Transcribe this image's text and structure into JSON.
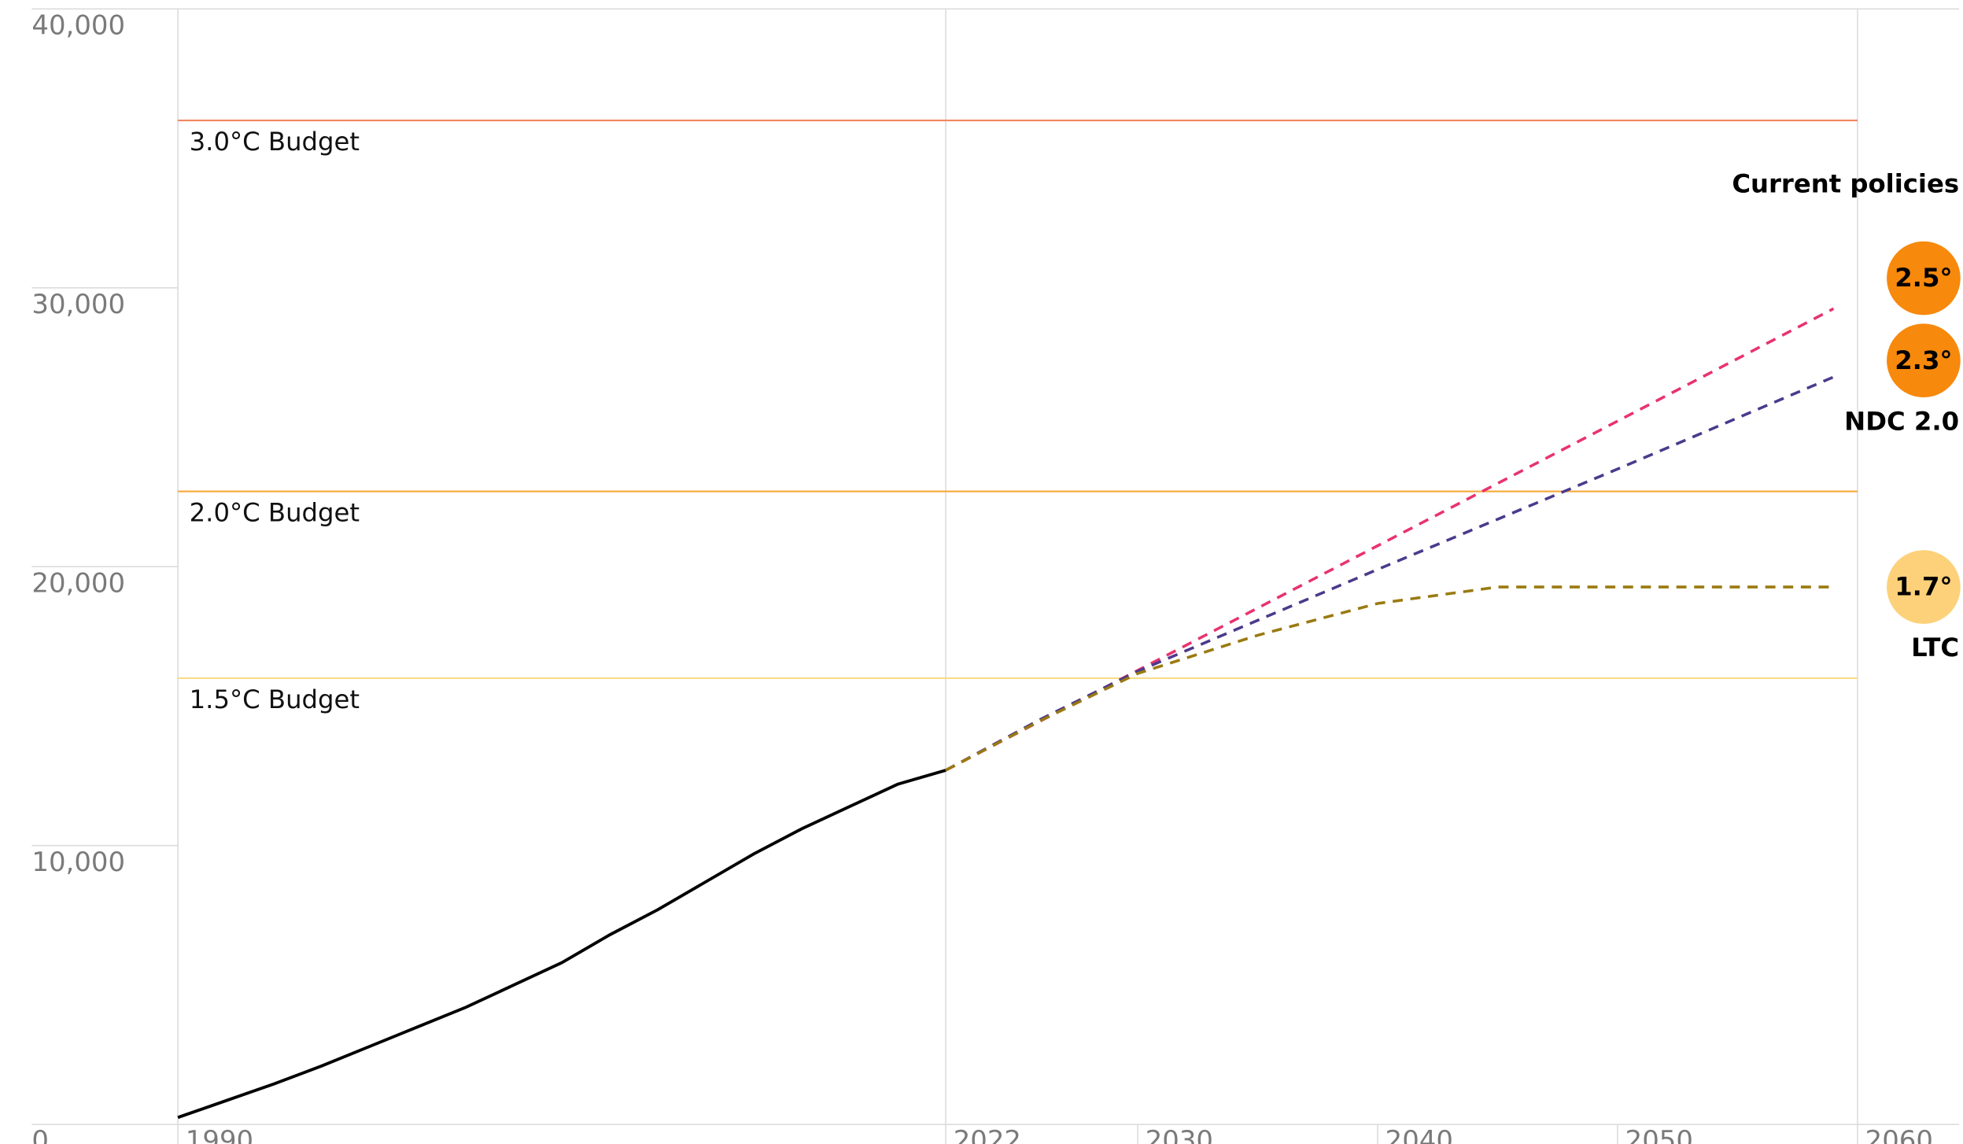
{
  "chart_data": {
    "type": "line",
    "xlim": [
      1990,
      2060
    ],
    "xticks": [
      1990,
      2022,
      2030,
      2040,
      2050,
      2060
    ],
    "x_reference_lines": [
      1990,
      2022,
      2060
    ],
    "ylim": [
      0,
      40000
    ],
    "yticks": [
      0,
      {
        "value": 10000,
        "label": "10,000"
      },
      {
        "value": 20000,
        "label": "20,000"
      },
      {
        "value": 30000,
        "label": "30,000"
      },
      {
        "value": 40000,
        "label": "40,000"
      }
    ],
    "budgets": [
      {
        "label": "3.0°C Budget",
        "value": 36000,
        "color": "#f0875e"
      },
      {
        "label": "2.0°C Budget",
        "value": 22700,
        "color": "#f4a93a"
      },
      {
        "label": "1.5°C Budget",
        "value": 16000,
        "color": "#f6dc86"
      }
    ],
    "series": [
      {
        "color": "#000000",
        "dashed": false,
        "x": [
          1990,
          1992,
          1994,
          1996,
          1998,
          2000,
          2002,
          2004,
          2006,
          2008,
          2010,
          2012,
          2014,
          2016,
          2018,
          2020,
          2022
        ],
        "values": [
          250,
          850,
          1450,
          2100,
          2800,
          3500,
          4200,
          5000,
          5800,
          6800,
          7700,
          8700,
          9700,
          10600,
          11400,
          12200,
          12700
        ]
      },
      {
        "name": "Current policies",
        "temperature_label": "2.5°",
        "circle_color": "#f7890c",
        "color": "#e8336f",
        "dashed": true,
        "x": [
          2022,
          2030,
          2040,
          2050,
          2059
        ],
        "values": [
          12700,
          16280,
          20750,
          25220,
          29250
        ]
      },
      {
        "name": "NDC 2.0",
        "temperature_label": "2.3°",
        "circle_color": "#f7890c",
        "color": "#4b3a8c",
        "dashed": true,
        "x": [
          2022,
          2026,
          2030,
          2040,
          2050,
          2059
        ],
        "values": [
          12700,
          14550,
          16250,
          19900,
          23500,
          26800
        ]
      },
      {
        "name": "LTC",
        "temperature_label": "1.7°",
        "circle_color": "#fdd17a",
        "color": "#9a7a10",
        "dashed": true,
        "x": [
          2022,
          2026,
          2030,
          2035,
          2040,
          2045,
          2050,
          2059
        ],
        "values": [
          12700,
          14500,
          16170,
          17540,
          18680,
          19270,
          19270,
          19270
        ]
      }
    ]
  }
}
